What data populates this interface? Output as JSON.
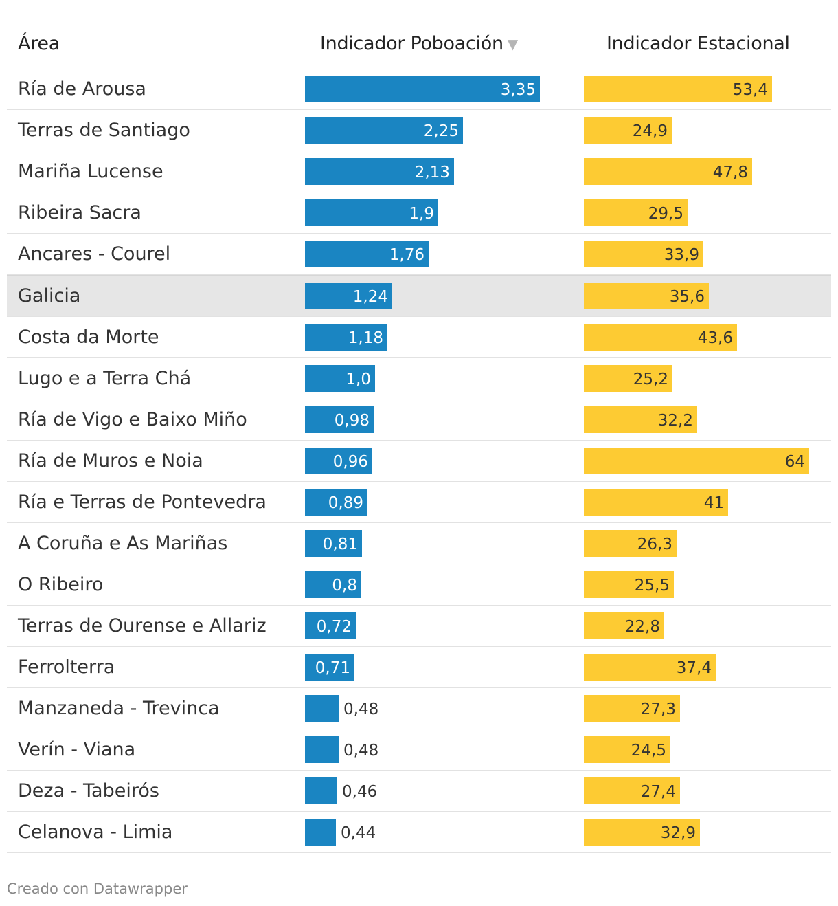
{
  "header": {
    "area": "Área",
    "poboacion": "Indicador Poboación",
    "estacional": "Indicador Estacional"
  },
  "colors": {
    "poboacion": "#1a85c2",
    "estacional": "#fdcb33",
    "highlight": "#e6e6e6"
  },
  "chart_data": {
    "type": "table",
    "columns": [
      "Área",
      "Indicador Poboación",
      "Indicador Estacional"
    ],
    "sorted_by": "Indicador Poboación",
    "sort_order": "descending",
    "rows": [
      {
        "area": "Ría de Arousa",
        "poboacion": 3.35,
        "poboacion_label": "3,35",
        "estacional": 53.4,
        "estacional_label": "53,4"
      },
      {
        "area": "Terras de Santiago",
        "poboacion": 2.25,
        "poboacion_label": "2,25",
        "estacional": 24.9,
        "estacional_label": "24,9"
      },
      {
        "area": "Mariña Lucense",
        "poboacion": 2.13,
        "poboacion_label": "2,13",
        "estacional": 47.8,
        "estacional_label": "47,8"
      },
      {
        "area": "Ribeira Sacra",
        "poboacion": 1.9,
        "poboacion_label": "1,9",
        "estacional": 29.5,
        "estacional_label": "29,5"
      },
      {
        "area": "Ancares - Courel",
        "poboacion": 1.76,
        "poboacion_label": "1,76",
        "estacional": 33.9,
        "estacional_label": "33,9"
      },
      {
        "area": "Galicia",
        "poboacion": 1.24,
        "poboacion_label": "1,24",
        "estacional": 35.6,
        "estacional_label": "35,6",
        "highlight": true
      },
      {
        "area": "Costa da Morte",
        "poboacion": 1.18,
        "poboacion_label": "1,18",
        "estacional": 43.6,
        "estacional_label": "43,6"
      },
      {
        "area": "Lugo e a Terra Chá",
        "poboacion": 1.0,
        "poboacion_label": "1,0",
        "estacional": 25.2,
        "estacional_label": "25,2"
      },
      {
        "area": "Ría de Vigo e Baixo Miño",
        "poboacion": 0.98,
        "poboacion_label": "0,98",
        "estacional": 32.2,
        "estacional_label": "32,2"
      },
      {
        "area": "Ría de Muros e Noia",
        "poboacion": 0.96,
        "poboacion_label": "0,96",
        "estacional": 64,
        "estacional_label": "64"
      },
      {
        "area": "Ría e Terras de Pontevedra",
        "poboacion": 0.89,
        "poboacion_label": "0,89",
        "estacional": 41,
        "estacional_label": "41"
      },
      {
        "area": "A Coruña e As Mariñas",
        "poboacion": 0.81,
        "poboacion_label": "0,81",
        "estacional": 26.3,
        "estacional_label": "26,3"
      },
      {
        "area": "O Ribeiro",
        "poboacion": 0.8,
        "poboacion_label": "0,8",
        "estacional": 25.5,
        "estacional_label": "25,5"
      },
      {
        "area": "Terras de Ourense e Allariz",
        "poboacion": 0.72,
        "poboacion_label": "0,72",
        "estacional": 22.8,
        "estacional_label": "22,8"
      },
      {
        "area": "Ferrolterra",
        "poboacion": 0.71,
        "poboacion_label": "0,71",
        "estacional": 37.4,
        "estacional_label": "37,4"
      },
      {
        "area": "Manzaneda - Trevinca",
        "poboacion": 0.48,
        "poboacion_label": "0,48",
        "estacional": 27.3,
        "estacional_label": "27,3"
      },
      {
        "area": "Verín - Viana",
        "poboacion": 0.48,
        "poboacion_label": "0,48",
        "estacional": 24.5,
        "estacional_label": "24,5"
      },
      {
        "area": "Deza - Tabeirós",
        "poboacion": 0.46,
        "poboacion_label": "0,46",
        "estacional": 27.4,
        "estacional_label": "27,4"
      },
      {
        "area": "Celanova - Limia",
        "poboacion": 0.44,
        "poboacion_label": "0,44",
        "estacional": 32.9,
        "estacional_label": "32,9"
      }
    ]
  },
  "footer": {
    "credit": "Creado con Datawrapper"
  }
}
